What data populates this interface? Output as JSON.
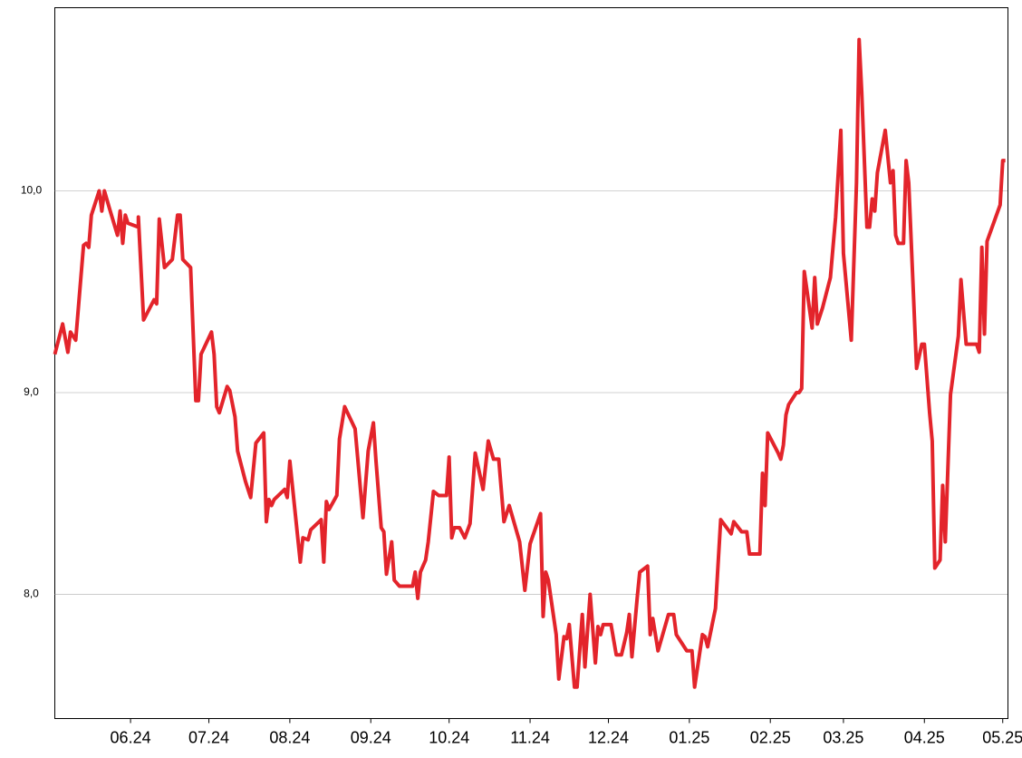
{
  "chart_data": {
    "type": "line",
    "color": "#e3242b",
    "grid": true,
    "xlim": [
      0,
      365
    ],
    "ylim": [
      7.384,
      10.908
    ],
    "xticks": [
      {
        "value": 29,
        "label": "06.24"
      },
      {
        "value": 59,
        "label": "07.24"
      },
      {
        "value": 90,
        "label": "08.24"
      },
      {
        "value": 121,
        "label": "09.24"
      },
      {
        "value": 151,
        "label": "10.24"
      },
      {
        "value": 182,
        "label": "11.24"
      },
      {
        "value": 212,
        "label": "12.24"
      },
      {
        "value": 243,
        "label": "01.25"
      },
      {
        "value": 274,
        "label": "02.25"
      },
      {
        "value": 302,
        "label": "03.25"
      },
      {
        "value": 333,
        "label": "04.25"
      },
      {
        "value": 363,
        "label": "05.25"
      }
    ],
    "yticks": [
      {
        "value": 8,
        "label": "8,0"
      },
      {
        "value": 9,
        "label": "9,0"
      },
      {
        "value": 10,
        "label": "10,0"
      }
    ],
    "x": [
      0,
      3,
      5,
      6,
      8,
      11,
      12,
      13,
      14,
      17,
      18,
      19,
      21,
      24,
      25,
      26,
      27,
      28,
      32,
      32,
      34,
      38,
      39,
      40,
      42,
      45,
      47,
      48,
      49,
      52,
      54,
      55,
      56,
      60,
      61,
      62,
      63,
      66,
      67,
      69,
      70,
      73,
      75,
      77,
      80,
      81,
      82,
      83,
      84,
      88,
      89,
      90,
      94,
      95,
      97,
      98,
      102,
      103,
      104,
      105,
      108,
      109,
      111,
      115,
      118,
      120,
      122,
      123,
      125,
      126,
      127,
      129,
      130,
      132,
      134,
      137,
      138,
      139,
      140,
      142,
      143,
      145,
      147,
      150,
      151,
      152,
      153,
      155,
      157,
      159,
      161,
      164,
      166,
      168,
      170,
      172,
      174,
      178,
      180,
      182,
      186,
      187,
      188,
      189,
      192,
      193,
      195,
      196,
      197,
      199,
      200,
      202,
      203,
      205,
      207,
      208,
      209,
      210,
      213,
      215,
      217,
      219,
      220,
      221,
      223,
      224,
      227,
      228,
      229,
      231,
      235,
      237,
      238,
      242,
      244,
      245,
      248,
      249,
      250,
      253,
      255,
      259,
      260,
      263,
      265,
      266,
      270,
      271,
      272,
      273,
      277,
      278,
      279,
      280,
      281,
      284,
      285,
      286,
      287,
      288,
      290,
      291,
      292,
      294,
      297,
      299,
      301,
      302,
      305,
      307,
      308,
      309,
      311,
      312,
      313,
      314,
      315,
      318,
      320,
      321,
      322,
      323,
      325,
      326,
      327,
      330,
      332,
      333,
      335,
      336,
      337,
      339,
      340,
      341,
      343,
      346,
      347,
      349,
      353,
      354,
      355,
      356,
      357,
      362,
      363,
      364
    ],
    "values": [
      9.19,
      9.34,
      9.2,
      9.3,
      9.26,
      9.73,
      9.74,
      9.72,
      9.88,
      10.0,
      9.9,
      10.0,
      9.91,
      9.78,
      9.9,
      9.74,
      9.88,
      9.84,
      9.82,
      9.87,
      9.36,
      9.46,
      9.44,
      9.86,
      9.62,
      9.66,
      9.88,
      9.88,
      9.66,
      9.62,
      8.96,
      8.96,
      9.19,
      9.3,
      9.19,
      8.93,
      8.9,
      9.03,
      9.01,
      8.88,
      8.71,
      8.56,
      8.48,
      8.75,
      8.8,
      8.36,
      8.47,
      8.44,
      8.47,
      8.52,
      8.48,
      8.66,
      8.16,
      8.28,
      8.27,
      8.32,
      8.37,
      8.16,
      8.46,
      8.42,
      8.49,
      8.77,
      8.93,
      8.82,
      8.38,
      8.71,
      8.85,
      8.66,
      8.33,
      8.31,
      8.1,
      8.26,
      8.07,
      8.04,
      8.04,
      8.04,
      8.11,
      7.98,
      8.11,
      8.17,
      8.26,
      8.51,
      8.49,
      8.49,
      8.68,
      8.28,
      8.33,
      8.33,
      8.28,
      8.35,
      8.7,
      8.52,
      8.76,
      8.67,
      8.67,
      8.36,
      8.44,
      8.26,
      8.02,
      8.25,
      8.4,
      7.89,
      8.11,
      8.07,
      7.8,
      7.58,
      7.79,
      7.78,
      7.85,
      7.54,
      7.54,
      7.9,
      7.64,
      8.0,
      7.66,
      7.84,
      7.8,
      7.85,
      7.85,
      7.7,
      7.7,
      7.81,
      7.9,
      7.69,
      7.98,
      8.11,
      8.14,
      7.8,
      7.88,
      7.72,
      7.9,
      7.9,
      7.8,
      7.72,
      7.72,
      7.54,
      7.8,
      7.79,
      7.74,
      7.93,
      8.37,
      8.3,
      8.36,
      8.31,
      8.31,
      8.2,
      8.2,
      8.6,
      8.44,
      8.8,
      8.7,
      8.67,
      8.74,
      8.89,
      8.94,
      9.0,
      9.0,
      9.02,
      9.6,
      9.51,
      9.32,
      9.57,
      9.34,
      9.42,
      9.57,
      9.87,
      10.3,
      9.69,
      9.26,
      10.04,
      10.75,
      10.49,
      9.82,
      9.82,
      9.96,
      9.9,
      10.09,
      10.3,
      10.04,
      10.1,
      9.78,
      9.74,
      9.74,
      10.15,
      10.04,
      9.12,
      9.24,
      9.24,
      8.9,
      8.76,
      8.13,
      8.17,
      8.54,
      8.26,
      8.99,
      9.28,
      9.56,
      9.24,
      9.24,
      9.2,
      9.72,
      9.29,
      9.75,
      9.93,
      10.15,
      10.15
    ]
  }
}
